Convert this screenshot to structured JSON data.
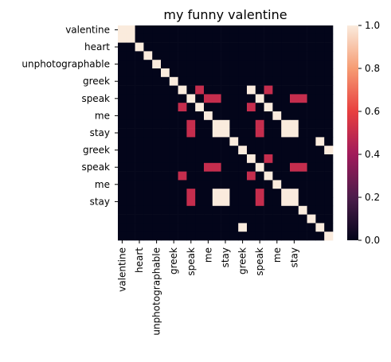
{
  "chart_data": {
    "type": "heatmap",
    "title": "my funny valentine",
    "tokens": [
      "valentine",
      "valentine",
      "heart",
      "unphotographable",
      "unphotographable",
      "greek",
      "greek",
      "greek",
      "speak",
      "speak",
      "me",
      "me",
      "stay",
      "stay",
      "stay",
      "greek",
      "greek",
      "greek",
      "speak",
      "speak",
      "me",
      "me",
      "stay",
      "stay",
      "stay"
    ],
    "x_tick_labels": [
      "valentine",
      "heart",
      "unphotographable",
      "greek",
      "speak",
      "me",
      "stay",
      "greek",
      "speak",
      "me",
      "stay"
    ],
    "y_tick_labels": [
      "valentine",
      "heart",
      "unphotographable",
      "greek",
      "speak",
      "me",
      "stay",
      "greek",
      "speak",
      "me",
      "stay"
    ],
    "colorbar": {
      "range": [
        0,
        1
      ],
      "ticks": [
        "0.0",
        "0.2",
        "0.4",
        "0.6",
        "0.8",
        "1.0"
      ],
      "colormap": "rocket",
      "colors": [
        "#03051a",
        "#4c1d4b",
        "#a11a5b",
        "#e83f3f",
        "#f69c73",
        "#faebdd"
      ]
    },
    "matrix": [
      [
        1,
        1,
        0,
        0,
        0,
        0,
        0,
        0,
        0,
        0,
        0,
        0,
        0,
        0,
        0,
        0,
        0,
        0,
        0,
        0,
        0,
        0,
        0,
        0,
        0
      ],
      [
        1,
        1,
        0,
        0,
        0,
        0,
        0,
        0,
        0,
        0,
        0,
        0,
        0,
        0,
        0,
        0,
        0,
        0,
        0,
        0,
        0,
        0,
        0,
        0,
        0
      ],
      [
        0,
        0,
        1,
        0,
        0,
        0,
        0,
        0,
        0,
        0,
        0,
        0,
        0,
        0,
        0,
        0,
        0,
        0,
        0,
        0,
        0,
        0,
        0,
        0,
        0
      ],
      [
        0,
        0,
        0,
        1,
        0,
        0,
        0,
        0,
        0,
        0,
        0,
        0,
        0,
        0,
        0,
        0,
        0,
        0,
        0,
        0,
        0,
        0,
        0,
        0,
        0
      ],
      [
        0,
        0,
        0,
        0,
        1,
        0,
        0,
        0,
        0,
        0,
        0,
        0,
        0,
        0,
        0,
        0,
        0,
        0,
        0,
        0,
        0,
        0,
        0,
        0,
        0
      ],
      [
        0,
        0,
        0,
        0,
        0,
        1,
        0,
        0,
        0,
        0,
        0,
        0,
        0,
        0,
        0,
        0,
        0,
        0,
        0,
        0,
        0,
        0,
        0,
        0,
        0
      ],
      [
        0,
        0,
        0,
        0,
        0,
        0,
        1,
        0,
        0,
        0,
        0,
        0,
        0,
        0,
        0,
        0,
        0,
        0,
        0,
        0,
        0,
        0,
        0,
        0,
        0
      ],
      [
        0,
        0,
        0,
        0,
        0,
        0,
        0,
        1,
        0,
        0.5,
        0,
        0,
        0,
        0,
        0,
        1,
        0,
        0.5,
        0,
        0,
        0,
        0,
        0,
        0,
        0
      ],
      [
        0,
        0,
        0,
        0,
        0,
        0,
        0,
        0,
        1,
        0,
        0.5,
        0.5,
        0,
        0,
        0,
        0,
        1,
        0,
        0,
        0,
        0.5,
        0.5,
        0,
        0,
        0
      ],
      [
        0,
        0,
        0,
        0,
        0,
        0,
        0,
        0.5,
        0,
        1,
        0,
        0,
        0,
        0,
        0,
        0.5,
        0,
        1,
        0,
        0,
        0,
        0,
        0,
        0,
        0
      ],
      [
        0,
        0,
        0,
        0,
        0,
        0,
        0,
        0,
        0,
        0,
        1,
        0,
        0,
        0,
        0,
        0,
        0,
        0,
        1,
        0,
        0,
        0,
        0,
        0,
        0
      ],
      [
        0,
        0,
        0,
        0,
        0,
        0,
        0,
        0,
        0.5,
        0,
        0,
        1,
        1,
        0,
        0,
        0,
        0.5,
        0,
        0,
        1,
        1,
        0,
        0,
        0,
        0
      ],
      [
        0,
        0,
        0,
        0,
        0,
        0,
        0,
        0,
        0.5,
        0,
        0,
        1,
        1,
        0,
        0,
        0,
        0.5,
        0,
        0,
        1,
        1,
        0,
        0,
        0,
        0
      ],
      [
        0,
        0,
        0,
        0,
        0,
        0,
        0,
        0,
        0,
        0,
        0,
        0,
        0,
        1,
        0,
        0,
        0,
        0,
        0,
        0,
        0,
        0,
        0,
        1,
        0
      ],
      [
        0,
        0,
        0,
        0,
        0,
        0,
        0,
        0,
        0,
        0,
        0,
        0,
        0,
        0,
        1,
        0,
        0,
        0,
        0,
        0,
        0,
        0,
        0,
        0,
        1
      ],
      [
        0,
        0,
        0,
        0,
        0,
        0,
        0,
        0,
        0,
        0,
        0,
        0,
        0,
        0,
        0,
        1,
        0,
        0.5,
        0,
        0,
        0,
        0,
        0,
        0,
        0
      ],
      [
        0,
        0,
        0,
        0,
        0,
        0,
        0,
        0,
        0,
        0,
        0.5,
        0.5,
        0,
        0,
        0,
        0,
        1,
        0,
        0,
        0,
        0.5,
        0.5,
        0,
        0,
        0
      ],
      [
        0,
        0,
        0,
        0,
        0,
        0,
        0,
        0.5,
        0,
        0,
        0,
        0,
        0,
        0,
        0,
        0.5,
        0,
        1,
        0,
        0,
        0,
        0,
        0,
        0,
        0
      ],
      [
        0,
        0,
        0,
        0,
        0,
        0,
        0,
        0,
        0,
        0,
        0,
        0,
        0,
        0,
        0,
        0,
        0,
        0,
        1,
        0,
        0,
        0,
        0,
        0,
        0
      ],
      [
        0,
        0,
        0,
        0,
        0,
        0,
        0,
        0,
        0.5,
        0,
        0,
        1,
        1,
        0,
        0,
        0,
        0.5,
        0,
        0,
        1,
        1,
        0,
        0,
        0,
        0
      ],
      [
        0,
        0,
        0,
        0,
        0,
        0,
        0,
        0,
        0.5,
        0,
        0,
        1,
        1,
        0,
        0,
        0,
        0.5,
        0,
        0,
        1,
        1,
        0,
        0,
        0,
        0
      ],
      [
        0,
        0,
        0,
        0,
        0,
        0,
        0,
        0,
        0,
        0,
        0,
        0,
        0,
        0,
        0,
        0,
        0,
        0,
        0,
        0,
        0,
        1,
        0,
        0,
        0
      ],
      [
        0,
        0,
        0,
        0,
        0,
        0,
        0,
        0,
        0,
        0,
        0,
        0,
        0,
        0,
        0,
        0,
        0,
        0,
        0,
        0,
        0,
        0,
        1,
        0,
        0
      ],
      [
        0,
        0,
        0,
        0,
        0,
        0,
        0,
        0,
        0,
        0,
        0,
        0,
        0,
        0,
        1,
        0,
        0,
        0,
        0,
        0,
        0,
        0,
        0,
        1,
        0
      ],
      [
        0,
        0,
        0,
        0,
        0,
        0,
        0,
        0,
        0,
        0,
        0,
        0,
        0,
        0,
        0,
        0,
        0,
        0,
        0,
        0,
        0,
        0,
        0,
        0,
        1
      ]
    ]
  }
}
